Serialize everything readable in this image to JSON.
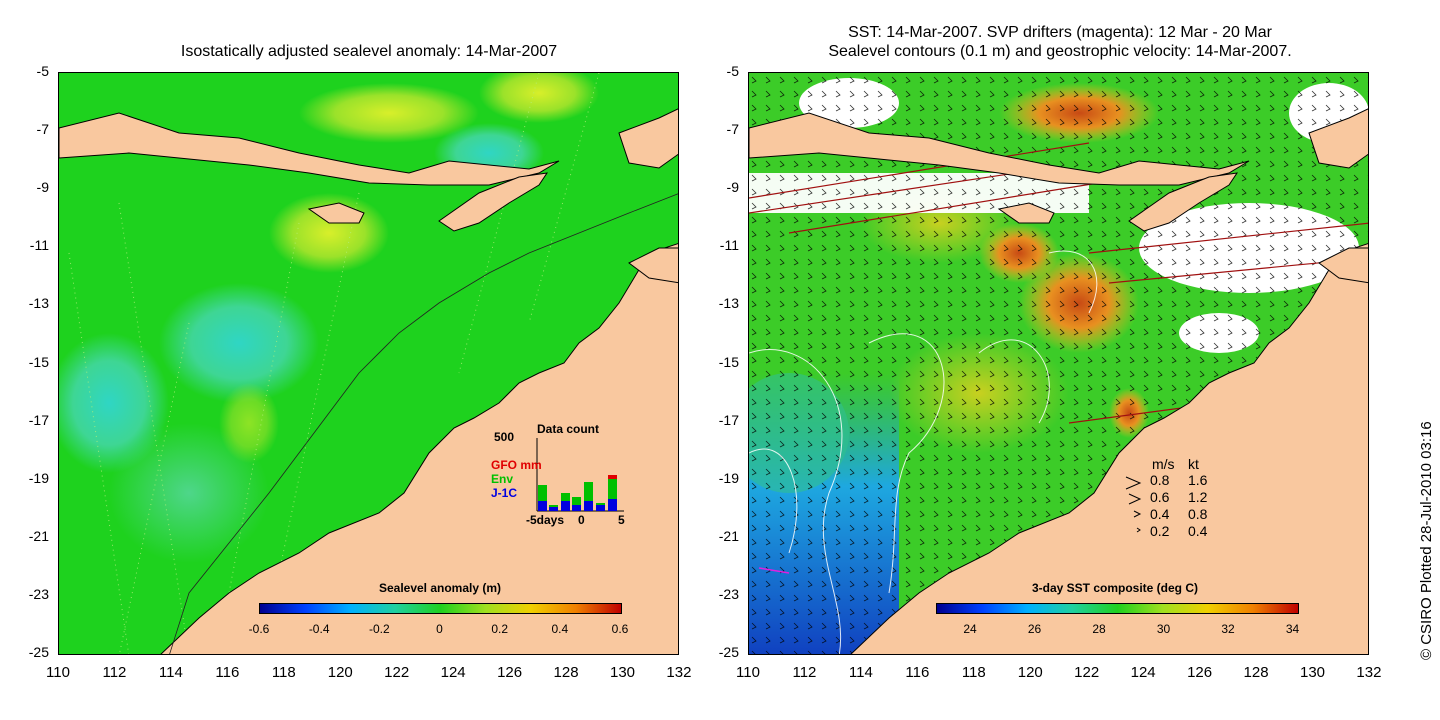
{
  "left_map": {
    "title": "Isostatically adjusted sealevel anomaly: 14-Mar-2007",
    "colorbar": {
      "title": "Sealevel anomaly (m)",
      "ticks": [
        "-0.6",
        "-0.4",
        "-0.2",
        "0",
        "0.2",
        "0.4",
        "0.6"
      ]
    },
    "inset": {
      "title": "Data count",
      "y_max": "500",
      "series": [
        "GFO mm",
        "Env",
        "J-1C"
      ],
      "series_colors": [
        "#e00000",
        "#00c000",
        "#0000e0"
      ],
      "x_ticks": [
        "-5days",
        "0",
        "5"
      ]
    }
  },
  "right_map": {
    "title_line1": "SST: 14-Mar-2007. SVP drifters (magenta): 12 Mar - 20 Mar",
    "title_line2": "Sealevel contours (0.1 m) and geostrophic velocity: 14-Mar-2007.",
    "colorbar": {
      "title": "3-day SST composite (deg C)",
      "ticks": [
        "24",
        "26",
        "28",
        "30",
        "32",
        "34"
      ]
    },
    "velocity_legend": {
      "header_ms": "m/s",
      "header_kt": "kt",
      "rows": [
        {
          "ms": "0.8",
          "kt": "1.6"
        },
        {
          "ms": "0.6",
          "kt": "1.2"
        },
        {
          "ms": "0.4",
          "kt": "0.8"
        },
        {
          "ms": "0.2",
          "kt": "0.4"
        }
      ]
    }
  },
  "axes": {
    "lat_ticks": [
      "-5",
      "-7",
      "-9",
      "-11",
      "-13",
      "-15",
      "-17",
      "-19",
      "-21",
      "-23",
      "-25"
    ],
    "lon_ticks": [
      "110",
      "112",
      "114",
      "116",
      "118",
      "120",
      "122",
      "124",
      "126",
      "128",
      "130",
      "132"
    ]
  },
  "credit": "© CSIRO Plotted 28-Jul-2010 03:16",
  "colors": {
    "land": "#f9c89f",
    "sla_base": "#1ed21e",
    "sst_base": "#3ccc28"
  }
}
